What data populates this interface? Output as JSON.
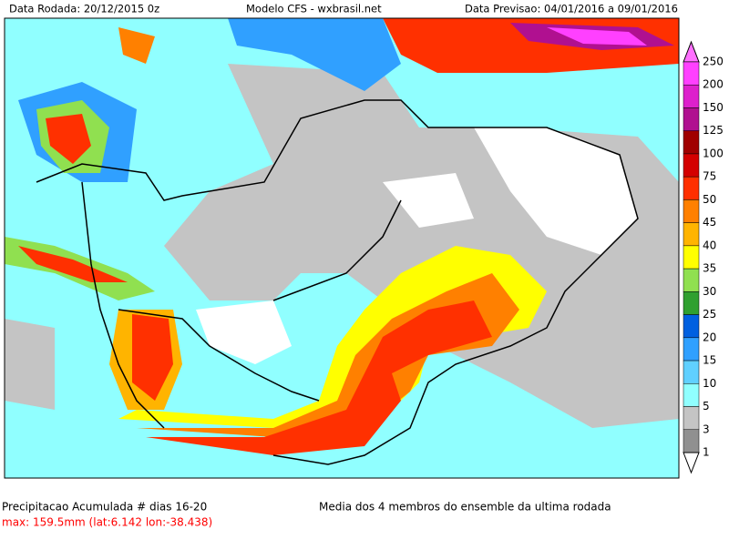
{
  "header": {
    "left": "Data Rodada: 20/12/2015 0z",
    "center": "Modelo CFS - wxbrasil.net",
    "right": "Data Previsao: 04/01/2016 a 09/01/2016"
  },
  "legend": {
    "labels": [
      250,
      200,
      150,
      125,
      100,
      75,
      50,
      45,
      40,
      35,
      30,
      25,
      20,
      15,
      10,
      5,
      3,
      1
    ],
    "colors": [
      "#ff70ff",
      "#ff40ff",
      "#dd20cc",
      "#b01090",
      "#a00000",
      "#d40000",
      "#ff3000",
      "#ff8000",
      "#ffb400",
      "#ffff00",
      "#90e050",
      "#30a030",
      "#0060e0",
      "#30a0ff",
      "#60d0ff",
      "#90ffff",
      "#c4c4c4",
      "#909090",
      "#ffffff"
    ]
  },
  "footer": {
    "title": "Precipitacao Acumulada # dias 16-20",
    "max": "max: 159.5mm (lat:6.142 lon:-38.438)",
    "note": "Media dos 4 membros do ensemble da ultima rodada"
  }
}
